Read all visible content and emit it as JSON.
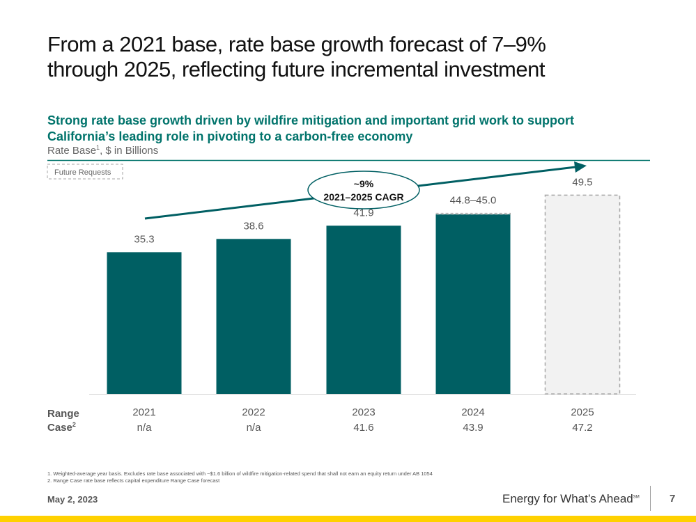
{
  "slide": {
    "title_line1": "From a 2021 base, rate base growth forecast of 7–9%",
    "title_line2": "through 2025, reflecting future incremental investment",
    "subtitle_line1": "Strong rate base growth driven by wildfire mitigation and important grid work to support",
    "subtitle_line2": "California’s leading role in pivoting to a carbon-free economy",
    "units_label": "Rate Base",
    "units_sup": "1",
    "units_suffix": ", $ in Billions",
    "footnote1": "1.   Weighted-average year basis. Excludes rate base associated with ~$1.6 billion of wildfire mitigation-related spend that shall not earn an equity return under AB 1054",
    "footnote2": "2.   Range Case rate base reflects capital expenditure Range Case forecast",
    "date": "May 2, 2023",
    "tagline": "Energy for What’s Ahead",
    "tagline_mark": "SM",
    "page_number": "7"
  },
  "colors": {
    "bar": "#005f63",
    "future_fill": "#f2f2f2",
    "future_stroke": "#a6a6a6",
    "accent": "#00736b",
    "brand_yellow": "#ffd100"
  },
  "chart_data": {
    "type": "bar",
    "title": "Rate Base, $ in Billions",
    "categories": [
      "2021",
      "2022",
      "2023",
      "2024",
      "2025"
    ],
    "values": [
      35.3,
      38.6,
      41.9,
      44.8,
      49.5
    ],
    "value_labels": [
      "35.3",
      "38.6",
      "41.9",
      "44.8–45.0",
      "49.5"
    ],
    "range_high": [
      null,
      null,
      null,
      45.0,
      null
    ],
    "future_request": [
      false,
      false,
      false,
      false,
      true
    ],
    "range_case_label_line1": "Range",
    "range_case_label_line2": "Case",
    "range_case_sup": "2",
    "range_case": [
      "n/a",
      "n/a",
      "41.6",
      "43.9",
      "47.2"
    ],
    "legend_future": "Future Requests",
    "cagr_line1": "~9%",
    "cagr_line2": "2021–2025 CAGR",
    "ylim": [
      0,
      52
    ]
  }
}
